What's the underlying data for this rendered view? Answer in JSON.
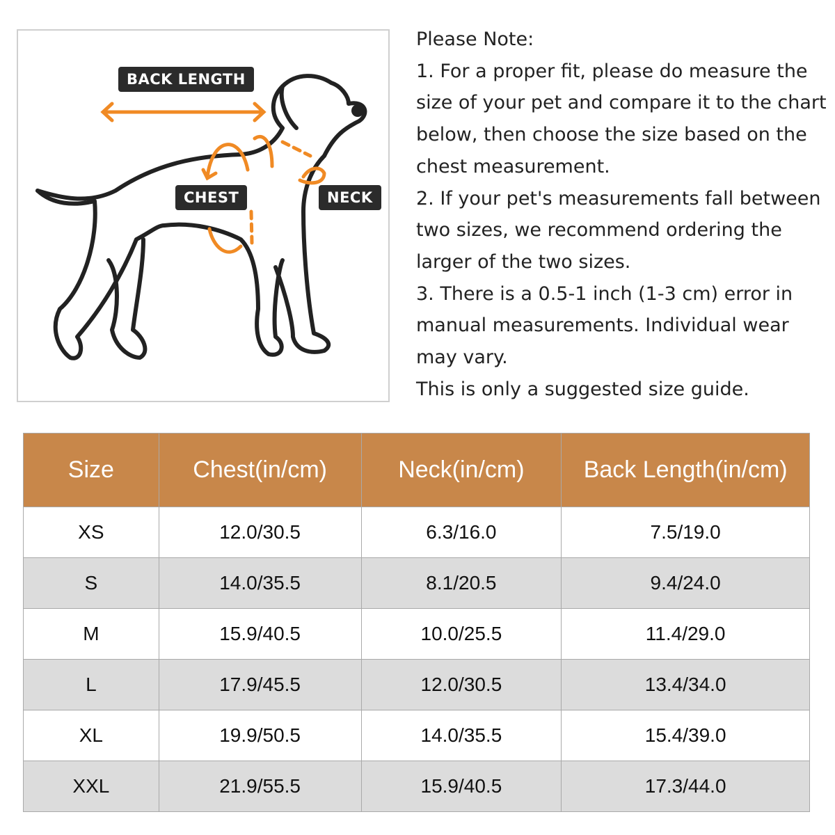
{
  "diagram": {
    "labels": {
      "back_length": "BACK LENGTH",
      "chest": "CHEST",
      "neck": "NECK"
    },
    "accent_color": "#f08a24",
    "label_bg": "#2b2b2b"
  },
  "notes": {
    "lines": [
      "Please Note:",
      "1. For a proper fit, please do measure the",
      "size of your pet and compare it to the chart",
      "below, then choose the size based on the",
      "chest measurement.",
      "2. If your pet's measurements fall between",
      "two sizes, we recommend ordering the",
      "larger of the two sizes.",
      "3. There is a 0.5-1 inch (1-3 cm) error in",
      "manual measurements. Individual wear",
      "may vary.",
      "This is only a suggested size guide."
    ]
  },
  "table": {
    "header_color": "#c8874a",
    "headers": [
      "Size",
      "Chest(in/cm)",
      "Neck(in/cm)",
      "Back Length(in/cm)"
    ],
    "rows": [
      [
        "XS",
        "12.0/30.5",
        "6.3/16.0",
        "7.5/19.0"
      ],
      [
        "S",
        "14.0/35.5",
        "8.1/20.5",
        "9.4/24.0"
      ],
      [
        "M",
        "15.9/40.5",
        "10.0/25.5",
        "11.4/29.0"
      ],
      [
        "L",
        "17.9/45.5",
        "12.0/30.5",
        "13.4/34.0"
      ],
      [
        "XL",
        "19.9/50.5",
        "14.0/35.5",
        "15.4/39.0"
      ],
      [
        "XXL",
        "21.9/55.5",
        "15.9/40.5",
        "17.3/44.0"
      ]
    ]
  }
}
